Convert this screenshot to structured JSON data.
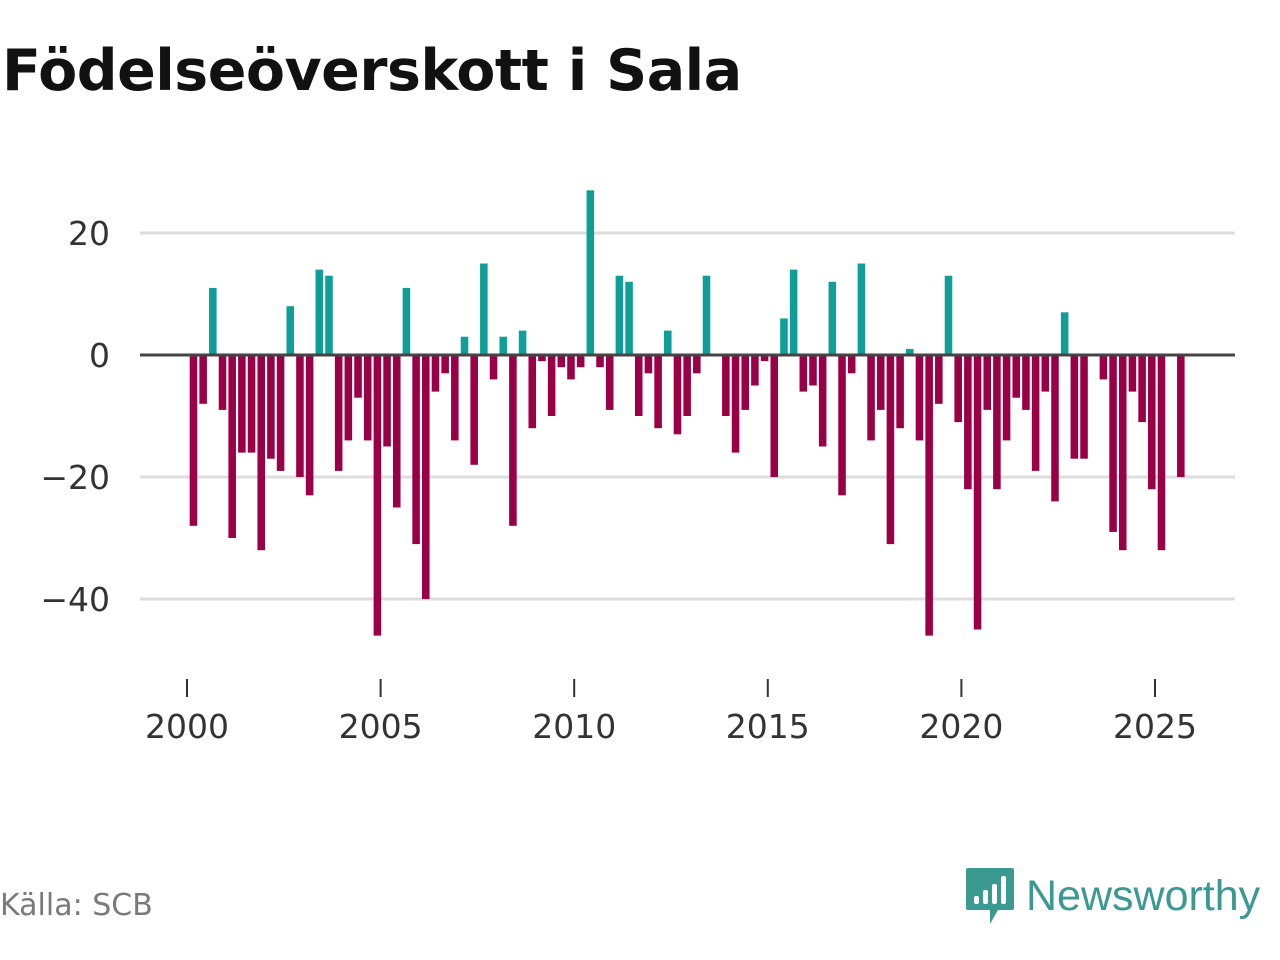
{
  "title": "Födelseöverskott i Sala",
  "source": "Källa: SCB",
  "brand": {
    "name": "Newsworthy"
  },
  "colors": {
    "positive": "#0f9e98",
    "negative": "#990045",
    "zero_line": "#444444",
    "grid": "#dddddd"
  },
  "chart_data": {
    "type": "bar",
    "title": "Födelseöverskott i Sala",
    "xlabel": "",
    "ylabel": "",
    "ylim": [
      -53,
      35
    ],
    "xlim": [
      1999.1,
      2027.2
    ],
    "yticks": [
      20,
      0,
      -20,
      -40
    ],
    "ytick_labels": [
      "20",
      "0",
      "−20",
      "−40"
    ],
    "xticks": [
      2000,
      2005,
      2010,
      2015,
      2020,
      2025
    ],
    "xtick_labels": [
      "2000",
      "2005",
      "2010",
      "2015",
      "2020",
      "2025"
    ],
    "x": [
      2000.167,
      2000.417,
      2000.667,
      2000.917,
      2001.167,
      2001.417,
      2001.667,
      2001.917,
      2002.167,
      2002.417,
      2002.667,
      2002.917,
      2003.167,
      2003.417,
      2003.667,
      2003.917,
      2004.167,
      2004.417,
      2004.667,
      2004.917,
      2005.167,
      2005.417,
      2005.667,
      2005.917,
      2006.167,
      2006.417,
      2006.667,
      2006.917,
      2007.167,
      2007.417,
      2007.667,
      2007.917,
      2008.167,
      2008.417,
      2008.667,
      2008.917,
      2009.167,
      2009.417,
      2009.667,
      2009.917,
      2010.167,
      2010.417,
      2010.667,
      2010.917,
      2011.167,
      2011.417,
      2011.667,
      2011.917,
      2012.167,
      2012.417,
      2012.667,
      2012.917,
      2013.167,
      2013.417,
      2013.667,
      2013.917,
      2014.167,
      2014.417,
      2014.667,
      2014.917,
      2015.167,
      2015.417,
      2015.667,
      2015.917,
      2016.167,
      2016.417,
      2016.667,
      2016.917,
      2017.167,
      2017.417,
      2017.667,
      2017.917,
      2018.167,
      2018.417,
      2018.667,
      2018.917,
      2019.167,
      2019.417,
      2019.667,
      2019.917,
      2020.167,
      2020.417,
      2020.667,
      2020.917,
      2021.167,
      2021.417,
      2021.667,
      2021.917,
      2022.167,
      2022.417,
      2022.667,
      2022.917,
      2023.167,
      2023.417,
      2023.667,
      2023.917,
      2024.167,
      2024.417,
      2024.667,
      2024.917,
      2025.167,
      2025.417,
      2025.667
    ],
    "values": [
      -28,
      -8,
      11,
      -9,
      -30,
      -16,
      -16,
      -32,
      -17,
      -19,
      8,
      -20,
      -23,
      14,
      13,
      -19,
      -14,
      -7,
      -14,
      -46,
      -15,
      -25,
      11,
      -31,
      -40,
      -6,
      -3,
      -14,
      3,
      -18,
      15,
      -4,
      3,
      -28,
      4,
      -12,
      -1,
      -10,
      -2,
      -4,
      -2,
      27,
      -2,
      -9,
      13,
      12,
      -10,
      -3,
      -12,
      4,
      -13,
      -10,
      -3,
      13,
      0,
      -10,
      -16,
      -9,
      -5,
      -1,
      -20,
      6,
      14,
      -6,
      -5,
      -15,
      12,
      -23,
      -3,
      15,
      -14,
      -9,
      -31,
      -12,
      1,
      -14,
      -46,
      -8,
      13,
      -11,
      -22,
      -45,
      -9,
      -22,
      -14,
      -7,
      -9,
      -19,
      -6,
      -24,
      7,
      -17,
      -17,
      0,
      -4,
      -29,
      -32,
      -6,
      -11,
      -22,
      -32,
      0,
      -20
    ]
  }
}
